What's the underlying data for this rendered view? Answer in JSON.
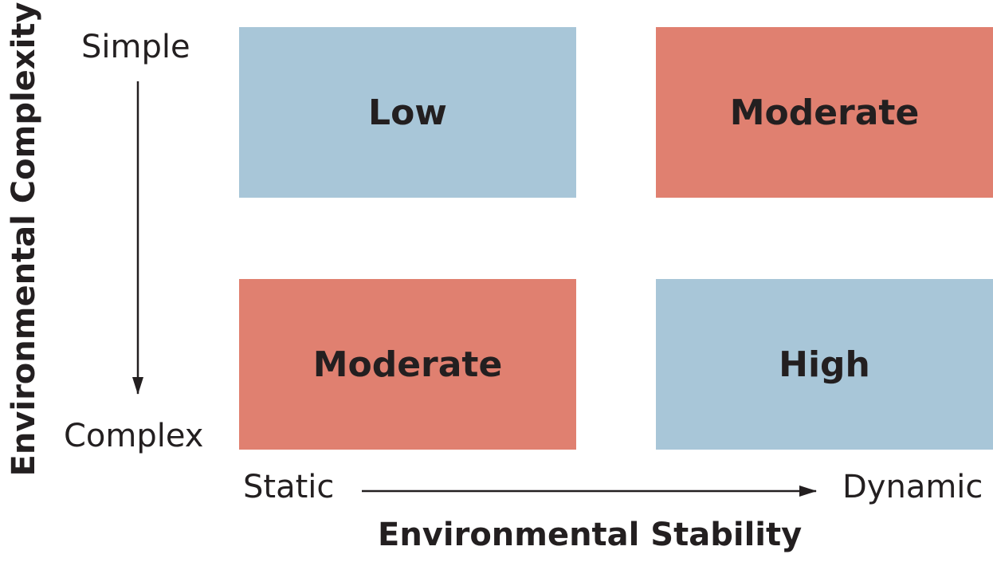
{
  "colors": {
    "low_high_fill": "#a8c6d8",
    "moderate_fill": "#e08070",
    "text": "#231f20"
  },
  "cells": {
    "top_left": {
      "label": "Low",
      "color": "#a8c6d8"
    },
    "top_right": {
      "label": "Moderate",
      "color": "#e08070"
    },
    "bottom_left": {
      "label": "Moderate",
      "color": "#e08070"
    },
    "bottom_right": {
      "label": "High",
      "color": "#a8c6d8"
    }
  },
  "y_axis": {
    "title": "Environmental Complexity",
    "start_label": "Simple",
    "end_label": "Complex"
  },
  "x_axis": {
    "title": "Environmental Stability",
    "start_label": "Static",
    "end_label": "Dynamic"
  }
}
